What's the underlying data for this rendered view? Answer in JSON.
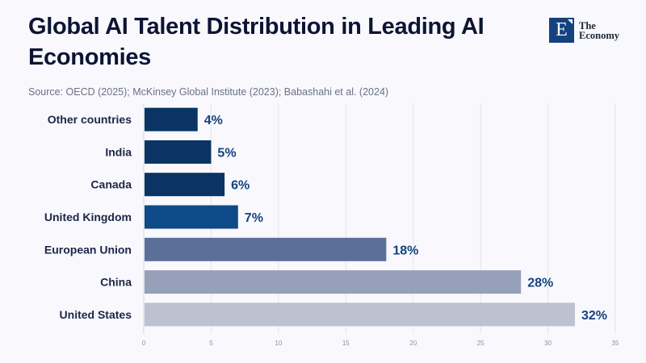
{
  "header": {
    "title": "Global AI Talent Distribution in Leading AI Economies",
    "source": "Source: OECD (2025); McKinsey Global Institute (2023); Babashahi et al. (2024)"
  },
  "logo": {
    "letter": "E",
    "line1": "The",
    "line2": "Economy",
    "color": "#15427f"
  },
  "chart_data": {
    "type": "bar",
    "orientation": "horizontal",
    "title": "Global AI Talent Distribution in Leading AI Economies",
    "xlabel": "",
    "ylabel": "",
    "categories": [
      "Other countries",
      "India",
      "Canada",
      "United Kingdom",
      "European Union",
      "China",
      "United States"
    ],
    "values": [
      4,
      5,
      6,
      7,
      18,
      28,
      32
    ],
    "value_labels": [
      "4%",
      "5%",
      "6%",
      "7%",
      "18%",
      "28%",
      "32%"
    ],
    "colors": [
      "#0a3463",
      "#0a3463",
      "#0a3463",
      "#0d4a87",
      "#5b6f99",
      "#96a0b8",
      "#bcc2cf"
    ],
    "xlim": [
      0,
      35
    ],
    "xticks": [
      0,
      5,
      10,
      15,
      20,
      25,
      30,
      35
    ],
    "grid": true,
    "legend": "none"
  }
}
